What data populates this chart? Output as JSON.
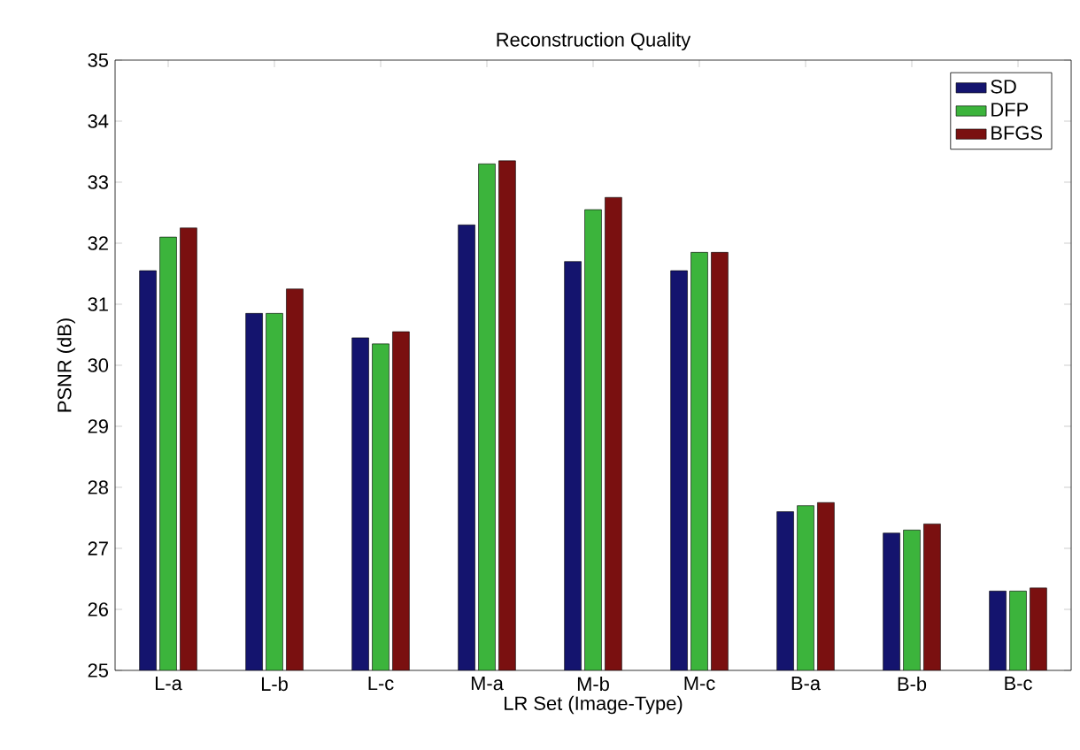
{
  "chart_data": {
    "type": "bar",
    "title": "Reconstruction Quality",
    "xlabel": "LR Set (Image-Type)",
    "ylabel": "PSNR (dB)",
    "categories": [
      "L-a",
      "L-b",
      "L-c",
      "M-a",
      "M-b",
      "M-c",
      "B-a",
      "B-b",
      "B-c"
    ],
    "series": [
      {
        "name": "SD",
        "color": "#14146e",
        "values": [
          31.55,
          30.85,
          30.45,
          32.3,
          31.7,
          31.55,
          27.6,
          27.25,
          26.3
        ]
      },
      {
        "name": "DFP",
        "color": "#3cb43c",
        "values": [
          32.1,
          30.85,
          30.35,
          33.3,
          32.55,
          31.85,
          27.7,
          27.3,
          26.3
        ]
      },
      {
        "name": "BFGS",
        "color": "#7a1010",
        "values": [
          32.25,
          31.25,
          30.55,
          33.35,
          32.75,
          31.85,
          27.75,
          27.4,
          26.35
        ]
      }
    ],
    "ylim": [
      25,
      35
    ],
    "yticks": [
      25,
      26,
      27,
      28,
      29,
      30,
      31,
      32,
      33,
      34,
      35
    ],
    "grid": false,
    "legend": "top right"
  }
}
